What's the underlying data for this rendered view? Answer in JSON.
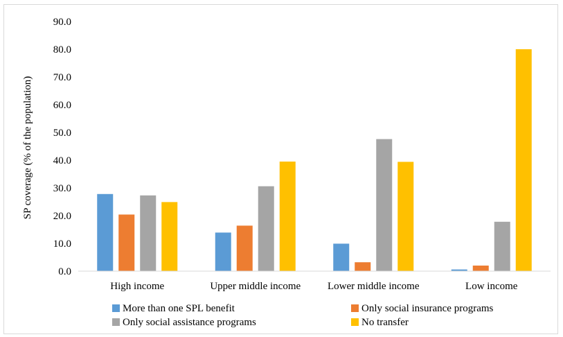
{
  "chart_data": {
    "type": "bar",
    "title": "",
    "xlabel": "",
    "ylabel": "SP coverage (% of the population)",
    "ylim": [
      0,
      90
    ],
    "yticks": [
      "0.0",
      "10.0",
      "20.0",
      "30.0",
      "40.0",
      "50.0",
      "60.0",
      "70.0",
      "80.0",
      "90.0"
    ],
    "categories": [
      "High income",
      "Upper middle income",
      "Lower middle income",
      "Low income"
    ],
    "series": [
      {
        "name": "More than one SPL benefit",
        "color": "#5b9bd5",
        "values": [
          27.8,
          13.9,
          9.9,
          0.6
        ]
      },
      {
        "name": "Only social insurance programs",
        "color": "#ed7d31",
        "values": [
          20.4,
          16.4,
          3.2,
          2.0
        ]
      },
      {
        "name": "Only social assistance programs",
        "color": "#a5a5a5",
        "values": [
          27.3,
          30.6,
          47.6,
          17.8
        ]
      },
      {
        "name": "No transfer",
        "color": "#ffc000",
        "values": [
          24.9,
          39.5,
          39.4,
          80.0
        ]
      }
    ],
    "grid": false,
    "legend_position": "bottom"
  }
}
